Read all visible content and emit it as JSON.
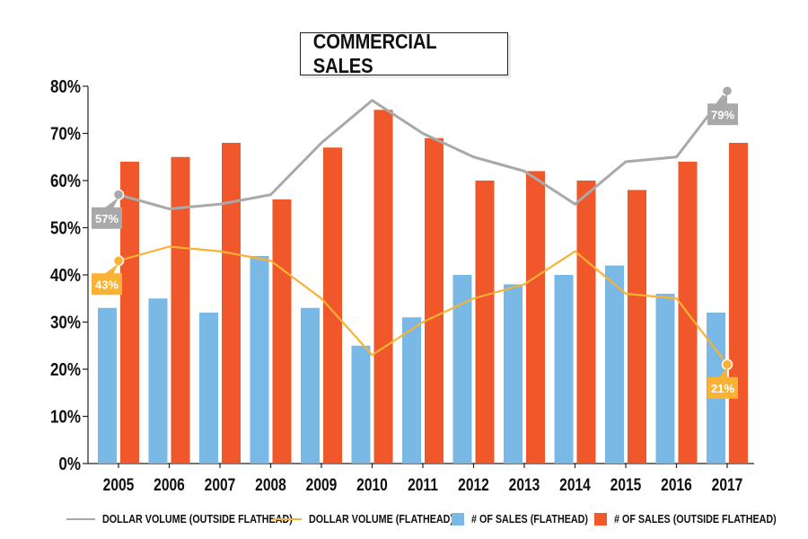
{
  "chart_data": {
    "type": "bar",
    "title": "COMMERCIAL SALES",
    "categories": [
      "2005",
      "2006",
      "2007",
      "2008",
      "2009",
      "2010",
      "2011",
      "2012",
      "2013",
      "2014",
      "2015",
      "2016",
      "2017"
    ],
    "ylim": [
      0,
      80
    ],
    "yticks": [
      "0%",
      "10%",
      "20%",
      "30%",
      "40%",
      "50%",
      "60%",
      "70%",
      "80%"
    ],
    "ytick_values": [
      0,
      10,
      20,
      30,
      40,
      50,
      60,
      70,
      80
    ],
    "series": [
      {
        "name": "# OF SALES (FLATHEAD)",
        "kind": "bar",
        "color": "#7ab8e6",
        "values": [
          33,
          35,
          32,
          44,
          33,
          25,
          31,
          40,
          38,
          40,
          42,
          36,
          32
        ]
      },
      {
        "name": "# OF SALES (OUTSIDE FLATHEAD)",
        "kind": "bar",
        "color": "#f0572a",
        "values": [
          64,
          65,
          68,
          56,
          67,
          75,
          69,
          60,
          62,
          60,
          58,
          64,
          68
        ]
      },
      {
        "name": "DOLLAR VOLUME (OUTSIDE FLATHEAD)",
        "kind": "line",
        "color": "#a9a9a9",
        "values": [
          57,
          54,
          55,
          57,
          68,
          77,
          70,
          65,
          62,
          55,
          64,
          65,
          79
        ]
      },
      {
        "name": "DOLLAR VOLUME (FLATHEAD)",
        "kind": "line",
        "color": "#f9b233",
        "values": [
          43,
          46,
          45,
          43,
          35,
          23,
          30,
          35,
          38,
          45,
          36,
          35,
          21
        ]
      }
    ],
    "callouts": [
      {
        "label": "57%",
        "series": "DOLLAR VOLUME (OUTSIDE FLATHEAD)",
        "index": 0,
        "color": "#a9a9a9",
        "side": "below"
      },
      {
        "label": "43%",
        "series": "DOLLAR VOLUME (FLATHEAD)",
        "index": 0,
        "color": "#f9b233",
        "side": "below"
      },
      {
        "label": "79%",
        "series": "DOLLAR VOLUME (OUTSIDE FLATHEAD)",
        "index": 12,
        "color": "#a9a9a9",
        "side": "below"
      },
      {
        "label": "21%",
        "series": "DOLLAR VOLUME (FLATHEAD)",
        "index": 12,
        "color": "#f9b233",
        "side": "below"
      }
    ],
    "legend": [
      {
        "label": "DOLLAR VOLUME (OUTSIDE FLATHEAD)",
        "kind": "line",
        "color": "#a9a9a9"
      },
      {
        "label": "DOLLAR VOLUME (FLATHEAD)",
        "kind": "line",
        "color": "#f9b233"
      },
      {
        "label": "# OF SALES (FLATHEAD)",
        "kind": "box",
        "color": "#7ab8e6"
      },
      {
        "label": "# OF SALES (OUTSIDE FLATHEAD)",
        "kind": "box",
        "color": "#f0572a"
      }
    ],
    "legend_position": "bottom"
  }
}
